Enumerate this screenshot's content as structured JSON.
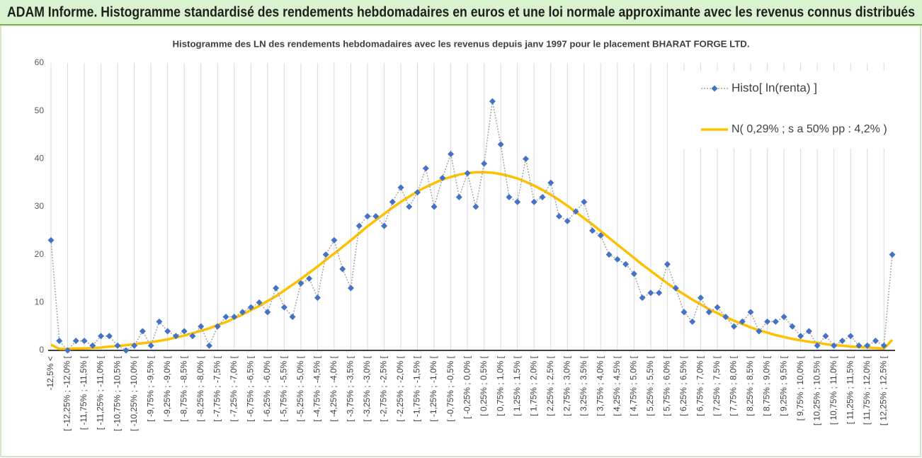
{
  "chart_data": {
    "type": "line",
    "title": "ADAM Informe. Histogramme standardisé des rendements hebdomadaires en euros et une loi normale approximante avec les revenus connus distribués",
    "subtitle": "Histogramme des LN des rendements hebdomadaires avec les revenus depuis janv 1997 pour le placement BHARAT FORGE  LTD.",
    "categories": [
      "-12,5% <",
      null,
      "[ -12,25% ; -12,0% [",
      null,
      "[ -11,75% ; -11,5% [",
      null,
      "[ -11,25% ; -11,0% [",
      null,
      "[ -10,75% ; -10,5% [",
      null,
      "[ -10,25% ; -10,0% [",
      null,
      "[ -9,75% ; -9,5% [",
      null,
      "[ -9,25% ; -9,0% [",
      null,
      "[ -8,75% ; -8,5% [",
      null,
      "[ -8,25% ; -8,0% [",
      null,
      "[ -7,75% ; -7,5% [",
      null,
      "[ -7,25% ; -7,0% [",
      null,
      "[ -6,75% ; -6,5% [",
      null,
      "[ -6,25% ; -6,0% [",
      null,
      "[ -5,75% ; -5,5% [",
      null,
      "[ -5,25% ; -5,0% [",
      null,
      "[ -4,75% ; -4,5% [",
      null,
      "[ -4,25% ; -4,0% [",
      null,
      "[ -3,75% ; -3,5% [",
      null,
      "[ -3,25% ; -3,0% [",
      null,
      "[ -2,75% ; -2,5% [",
      null,
      "[ -2,25% ; -2,0% [",
      null,
      "[ -1,75% ; -1,5% [",
      null,
      "[ -1,25% ; -1,0% [",
      null,
      "[ -0,75% ; -0,5% [",
      null,
      "[ -0,25% ; 0,0% [",
      null,
      "[ 0,25% ; 0,5% [",
      null,
      "[ 0,75% ; 1,0% [",
      null,
      "[ 1,25% ; 1,5% [",
      null,
      "[ 1,75% ; 2,0% [",
      null,
      "[ 2,25% ; 2,5% [",
      null,
      "[ 2,75% ; 3,0% [",
      null,
      "[ 3,25% ; 3,5% [",
      null,
      "[ 3,75% ; 4,0% [",
      null,
      "[ 4,25% ; 4,5% [",
      null,
      "[ 4,75% ; 5,0% [",
      null,
      "[ 5,25% ; 5,5% [",
      null,
      "[ 5,75% ; 6,0% [",
      null,
      "[ 6,25% ; 6,5% [",
      null,
      "[ 6,75% ; 7,0% [",
      null,
      "[ 7,25% ; 7,5% [",
      null,
      "[ 7,75% ; 8,0% [",
      null,
      "[ 8,25% ; 8,5% [",
      null,
      "[ 8,75% ; 9,0% [",
      null,
      "[ 9,25% ; 9,5% [",
      null,
      "[ 9,75% ; 10,0% [",
      null,
      "[ 10,25% ; 10,5% [",
      null,
      "[ 10,75% ; 11,0% [",
      null,
      "[ 11,25% ; 11,5% [",
      null,
      "[ 11,75% ; 12,0% [",
      null,
      "[ 12,25% ; 12,5% [",
      null
    ],
    "series": [
      {
        "name": "Histo[ ln(renta) ]",
        "color": "#4472c4",
        "line_color": "#a6a6a6",
        "values": [
          23,
          2,
          0,
          2,
          2,
          1,
          3,
          3,
          1,
          0,
          1,
          4,
          1,
          6,
          4,
          3,
          4,
          3,
          5,
          1,
          5,
          7,
          7,
          8,
          9,
          10,
          8,
          13,
          9,
          7,
          14,
          15,
          11,
          20,
          23,
          17,
          13,
          26,
          28,
          28,
          26,
          31,
          34,
          30,
          33,
          38,
          30,
          36,
          41,
          32,
          37,
          30,
          39,
          52,
          43,
          32,
          31,
          40,
          31,
          32,
          35,
          28,
          27,
          29,
          31,
          25,
          24,
          20,
          19,
          18,
          16,
          11,
          12,
          12,
          18,
          13,
          8,
          6,
          11,
          8,
          9,
          7,
          5,
          6,
          8,
          4,
          6,
          6,
          7,
          5,
          3,
          4,
          1,
          3,
          1,
          2,
          3,
          1,
          1,
          2,
          1,
          20
        ]
      },
      {
        "name": "N( 0,29% ; s a 50% pp : 4,2% )",
        "color": "#ffc000",
        "values": [
          1.2,
          0.3,
          0.3,
          0.4,
          0.4,
          0.5,
          0.6,
          0.8,
          0.9,
          1.1,
          1.3,
          1.5,
          1.7,
          2.0,
          2.3,
          2.7,
          3.1,
          3.6,
          4.1,
          4.6,
          5.3,
          5.9,
          6.7,
          7.5,
          8.4,
          9.3,
          10.3,
          11.3,
          12.5,
          13.7,
          14.9,
          16.2,
          17.5,
          18.9,
          20.2,
          21.6,
          23.0,
          24.4,
          25.9,
          27.2,
          28.5,
          29.8,
          31.0,
          32.1,
          33.2,
          34.1,
          34.9,
          35.7,
          36.2,
          36.7,
          37.0,
          37.2,
          37.2,
          37.1,
          36.8,
          36.4,
          35.9,
          35.2,
          34.4,
          33.5,
          32.5,
          31.4,
          30.2,
          28.9,
          27.6,
          26.3,
          24.9,
          23.5,
          22.1,
          20.7,
          19.3,
          17.9,
          16.6,
          15.3,
          14.0,
          12.8,
          11.7,
          10.6,
          9.6,
          8.6,
          7.8,
          6.9,
          6.2,
          5.5,
          4.8,
          4.2,
          3.7,
          3.2,
          2.8,
          2.4,
          2.1,
          1.8,
          1.6,
          1.3,
          1.1,
          1.0,
          0.8,
          0.7,
          0.6,
          0.5,
          0.4,
          2.2
        ]
      }
    ],
    "ylim": [
      0,
      60
    ],
    "yticks": [
      0,
      10,
      20,
      30,
      40,
      50,
      60
    ],
    "grid": "vertical",
    "legend": "top-right"
  }
}
